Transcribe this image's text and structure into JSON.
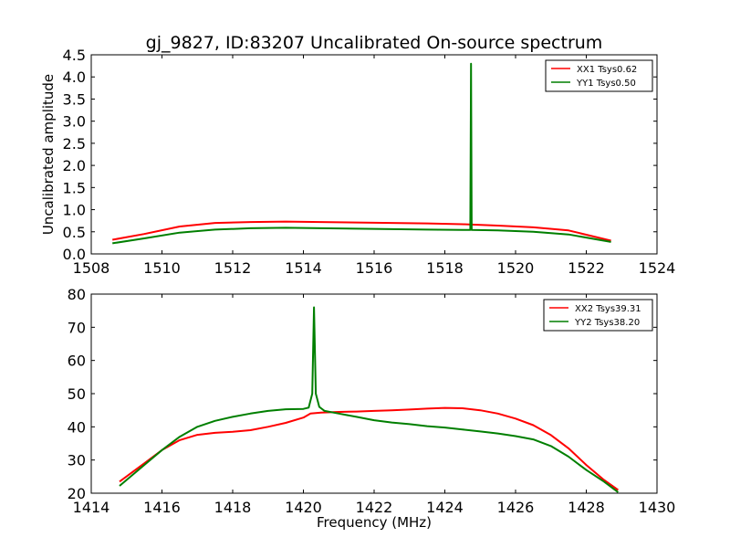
{
  "figure_title": "gj_9827, ID:83207 Uncalibrated On-source spectrum",
  "shared_xlabel": "Frequency (MHz)",
  "colors": {
    "XX": "#ff0000",
    "YY": "#007f00"
  },
  "chart_data": [
    {
      "type": "line",
      "title": "",
      "xlabel": "",
      "ylabel": "Uncalibrated amplitude",
      "xlim": [
        1508,
        1524
      ],
      "ylim": [
        0,
        4.5
      ],
      "xticks": [
        "1508",
        "1510",
        "1512",
        "1514",
        "1516",
        "1518",
        "1520",
        "1522",
        "1524"
      ],
      "yticks": [
        "0.0",
        "0.5",
        "1.0",
        "1.5",
        "2.0",
        "2.5",
        "3.0",
        "3.5",
        "4.0",
        "4.5"
      ],
      "grid": false,
      "legend_position": "top-right",
      "series": [
        {
          "name": "XX1 Tsys0.62",
          "color": "#ff0000",
          "points": [
            [
              1508.6,
              0.32
            ],
            [
              1509.5,
              0.45
            ],
            [
              1510.5,
              0.62
            ],
            [
              1511.5,
              0.7
            ],
            [
              1512.5,
              0.72
            ],
            [
              1513.5,
              0.73
            ],
            [
              1514.5,
              0.72
            ],
            [
              1515.5,
              0.71
            ],
            [
              1516.5,
              0.7
            ],
            [
              1517.5,
              0.69
            ],
            [
              1518.5,
              0.67
            ],
            [
              1519.5,
              0.64
            ],
            [
              1520.5,
              0.6
            ],
            [
              1521.5,
              0.53
            ],
            [
              1522.7,
              0.3
            ]
          ]
        },
        {
          "name": "YY1 Tsys0.50",
          "color": "#007f00",
          "points": [
            [
              1508.6,
              0.24
            ],
            [
              1509.5,
              0.35
            ],
            [
              1510.5,
              0.48
            ],
            [
              1511.5,
              0.55
            ],
            [
              1512.5,
              0.58
            ],
            [
              1513.5,
              0.59
            ],
            [
              1514.5,
              0.58
            ],
            [
              1515.5,
              0.57
            ],
            [
              1516.5,
              0.56
            ],
            [
              1517.5,
              0.55
            ],
            [
              1518.5,
              0.54
            ],
            [
              1518.72,
              0.54
            ],
            [
              1518.74,
              4.3
            ],
            [
              1518.76,
              0.54
            ],
            [
              1519.5,
              0.53
            ],
            [
              1520.5,
              0.5
            ],
            [
              1521.5,
              0.44
            ],
            [
              1522.7,
              0.27
            ]
          ]
        }
      ]
    },
    {
      "type": "line",
      "title": "",
      "xlabel": "Frequency (MHz)",
      "ylabel": "",
      "xlim": [
        1414,
        1430
      ],
      "ylim": [
        20,
        80
      ],
      "xticks": [
        "1414",
        "1416",
        "1418",
        "1420",
        "1422",
        "1424",
        "1426",
        "1428",
        "1430"
      ],
      "yticks": [
        "20",
        "30",
        "40",
        "50",
        "60",
        "70",
        "80"
      ],
      "grid": false,
      "legend_position": "top-right",
      "series": [
        {
          "name": "XX2 Tsys39.31",
          "color": "#ff0000",
          "points": [
            [
              1414.8,
              23.5
            ],
            [
              1415.5,
              29
            ],
            [
              1416.0,
              33
            ],
            [
              1416.5,
              36
            ],
            [
              1417.0,
              37.6
            ],
            [
              1417.5,
              38.2
            ],
            [
              1418.0,
              38.5
            ],
            [
              1418.5,
              39.0
            ],
            [
              1419.0,
              40.0
            ],
            [
              1419.5,
              41.2
            ],
            [
              1420.0,
              42.8
            ],
            [
              1420.2,
              44.0
            ],
            [
              1420.5,
              44.3
            ],
            [
              1421.0,
              44.5
            ],
            [
              1421.5,
              44.6
            ],
            [
              1422.0,
              44.8
            ],
            [
              1422.5,
              45.0
            ],
            [
              1423.0,
              45.2
            ],
            [
              1423.5,
              45.5
            ],
            [
              1424.0,
              45.7
            ],
            [
              1424.5,
              45.6
            ],
            [
              1425.0,
              45.0
            ],
            [
              1425.5,
              44.0
            ],
            [
              1426.0,
              42.5
            ],
            [
              1426.5,
              40.5
            ],
            [
              1427.0,
              37.5
            ],
            [
              1427.5,
              33.5
            ],
            [
              1428.0,
              28.5
            ],
            [
              1428.5,
              24.0
            ],
            [
              1428.9,
              21.0
            ]
          ]
        },
        {
          "name": "YY2 Tsys38.20",
          "color": "#007f00",
          "points": [
            [
              1414.8,
              22.2
            ],
            [
              1415.5,
              28.5
            ],
            [
              1416.0,
              33.0
            ],
            [
              1416.5,
              37.0
            ],
            [
              1417.0,
              40.0
            ],
            [
              1417.5,
              41.8
            ],
            [
              1418.0,
              43.0
            ],
            [
              1418.5,
              44.0
            ],
            [
              1419.0,
              44.8
            ],
            [
              1419.5,
              45.3
            ],
            [
              1420.0,
              45.4
            ],
            [
              1420.15,
              45.8
            ],
            [
              1420.25,
              50.0
            ],
            [
              1420.3,
              76.0
            ],
            [
              1420.35,
              50.0
            ],
            [
              1420.45,
              46.0
            ],
            [
              1420.6,
              44.8
            ],
            [
              1421.0,
              44.0
            ],
            [
              1421.5,
              43.0
            ],
            [
              1422.0,
              42.0
            ],
            [
              1422.5,
              41.3
            ],
            [
              1423.0,
              40.8
            ],
            [
              1423.5,
              40.2
            ],
            [
              1424.0,
              39.8
            ],
            [
              1424.5,
              39.2
            ],
            [
              1425.0,
              38.6
            ],
            [
              1425.5,
              38.0
            ],
            [
              1426.0,
              37.2
            ],
            [
              1426.5,
              36.2
            ],
            [
              1427.0,
              34.2
            ],
            [
              1427.5,
              31.0
            ],
            [
              1428.0,
              27.0
            ],
            [
              1428.5,
              23.5
            ],
            [
              1428.9,
              20.3
            ]
          ]
        }
      ]
    }
  ]
}
